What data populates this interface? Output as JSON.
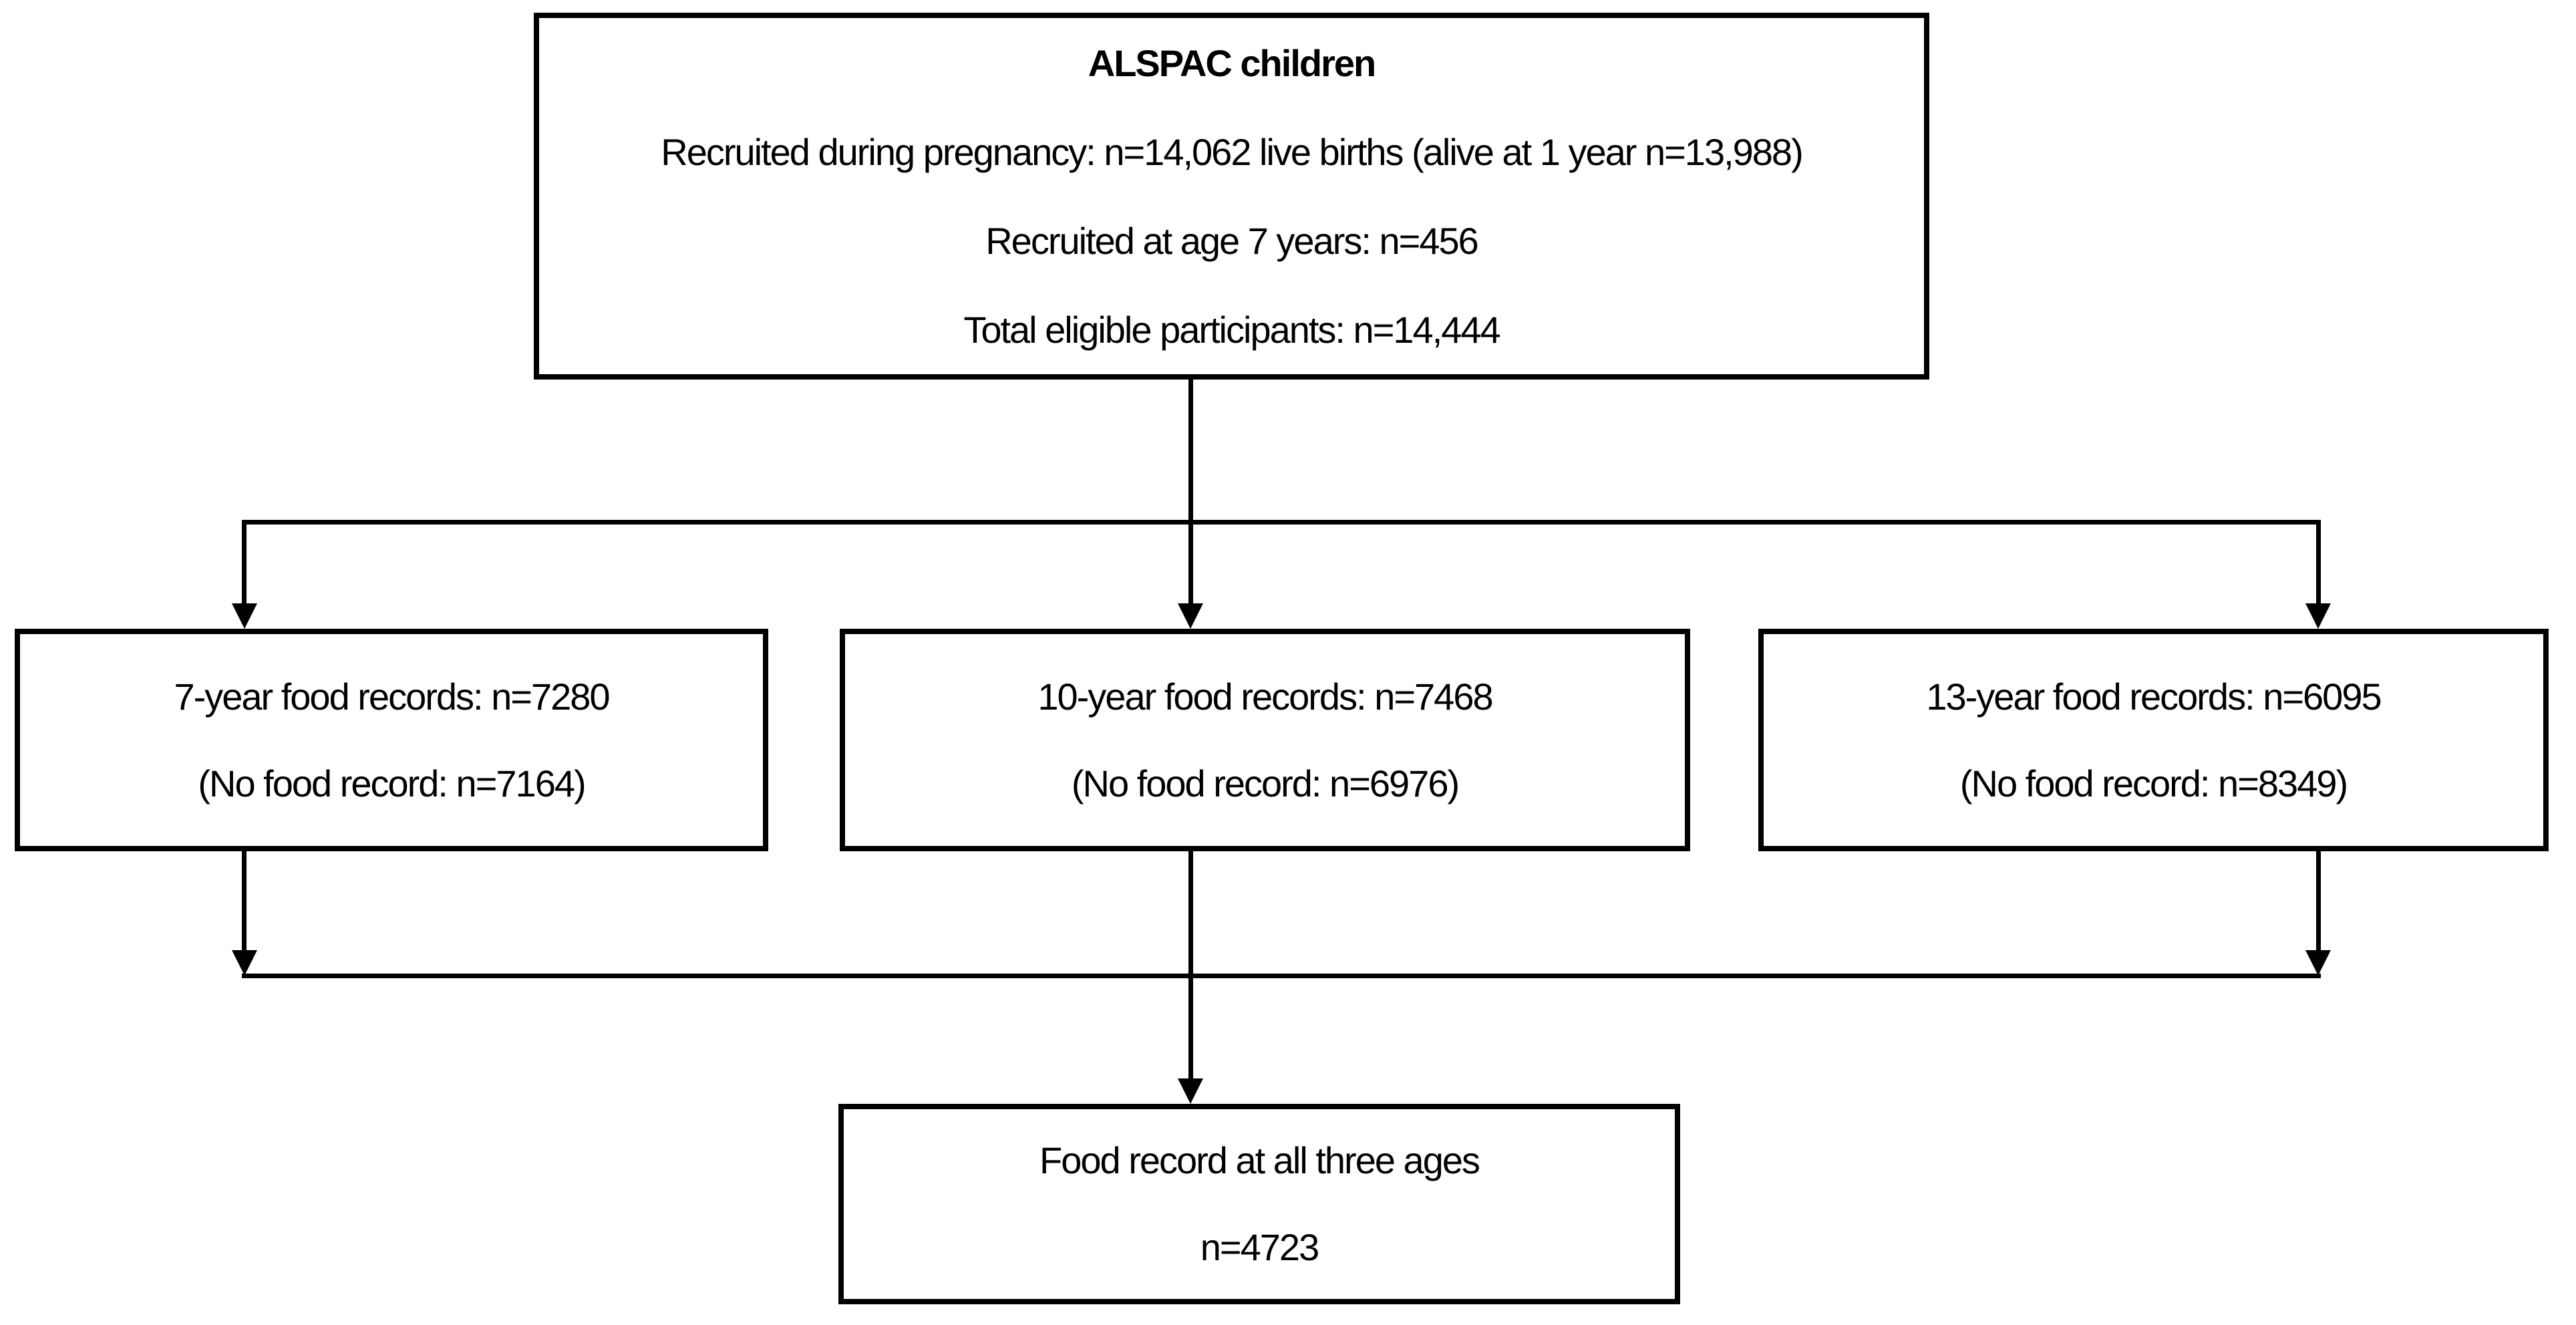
{
  "flowchart": {
    "top_box": {
      "title": "ALSPAC children",
      "lines": [
        "Recruited during pregnancy: n=14,062 live births (alive at 1 year n=13,988)",
        "Recruited at age 7 years: n=456",
        "Total eligible participants: n=14,444"
      ]
    },
    "branch_boxes": [
      {
        "records_line": "7-year food records: n=7280",
        "no_record_line": "(No food record: n=7164)"
      },
      {
        "records_line": "10-year food records: n=7468",
        "no_record_line": "(No food record: n=6976)"
      },
      {
        "records_line": "13-year food records: n=6095",
        "no_record_line": "(No food record: n=8349)"
      }
    ],
    "bottom_box": {
      "line1": "Food record at all three ages",
      "line2": "n=4723"
    },
    "colors": {
      "box_border": "#000000",
      "connector_line": "#000000",
      "text": "#000000",
      "background": "#ffffff"
    }
  }
}
